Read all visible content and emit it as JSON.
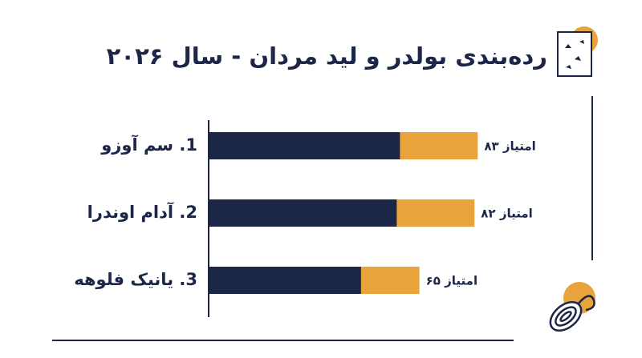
{
  "chart_data": {
    "type": "bar",
    "orientation": "horizontal",
    "title": "رده‌بندی بولدر و لید مردان - سال ۲۰۲۶",
    "categories": [
      "1. سم آوزو",
      "2. آدام اوندرا",
      "3. یانیک فلوهه"
    ],
    "series": [
      {
        "color": "#e8a33d",
        "values": [
          83,
          82,
          65
        ],
        "value_labels": [
          "۸۳ امتیاز",
          "۸۲ امتیاز",
          "۶۵ امتیاز"
        ]
      },
      {
        "color": "#1c2748",
        "values": [
          59,
          58,
          47
        ]
      }
    ],
    "xlim": [
      0,
      100
    ]
  }
}
